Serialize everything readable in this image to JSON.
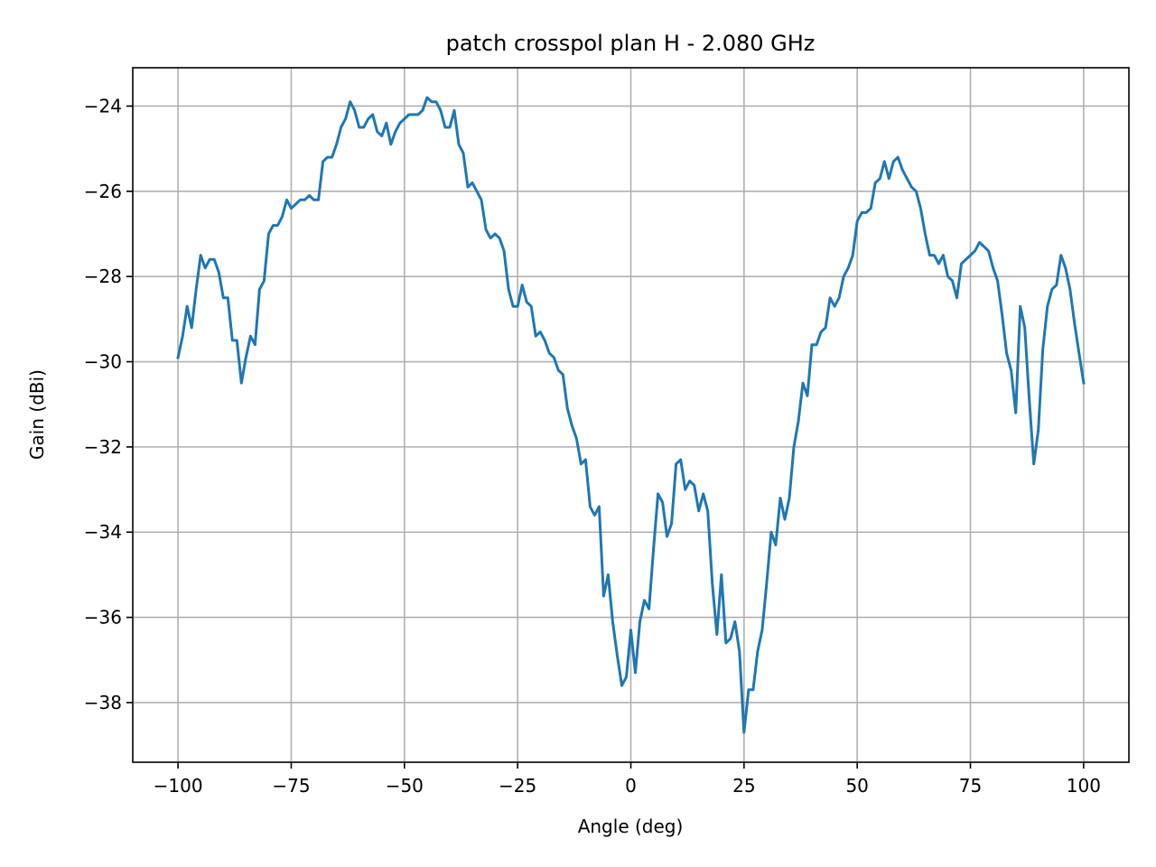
{
  "chart_data": {
    "type": "line",
    "title": "patch crosspol plan H - 2.080 GHz",
    "xlabel": "Angle (deg)",
    "ylabel": "Gain (dBi)",
    "xlim": [
      -110,
      110
    ],
    "ylim": [
      -39.4,
      -23.1
    ],
    "grid": true,
    "xticks": [
      -100,
      -75,
      -50,
      -25,
      0,
      25,
      50,
      75,
      100
    ],
    "xtick_labels": [
      "−100",
      "−75",
      "−50",
      "−25",
      "0",
      "25",
      "50",
      "75",
      "100"
    ],
    "yticks": [
      -38,
      -36,
      -34,
      -32,
      -30,
      -28,
      -26,
      -24
    ],
    "ytick_labels": [
      "−38",
      "−36",
      "−34",
      "−32",
      "−30",
      "−28",
      "−26",
      "−24"
    ],
    "series": [
      {
        "color": "#1f77b4",
        "x": [
          -100,
          -99,
          -98,
          -97,
          -96,
          -95,
          -94,
          -93,
          -92,
          -91,
          -90,
          -89,
          -88,
          -87,
          -86,
          -85,
          -84,
          -83,
          -82,
          -81,
          -80,
          -79,
          -78,
          -77,
          -76,
          -75,
          -74,
          -73,
          -72,
          -71,
          -70,
          -69,
          -68,
          -67,
          -66,
          -65,
          -64,
          -63,
          -62,
          -61,
          -60,
          -59,
          -58,
          -57,
          -56,
          -55,
          -54,
          -53,
          -52,
          -51,
          -50,
          -49,
          -48,
          -47,
          -46,
          -45,
          -44,
          -43,
          -42,
          -41,
          -40,
          -39,
          -38,
          -37,
          -36,
          -35,
          -34,
          -33,
          -32,
          -31,
          -30,
          -29,
          -28,
          -27,
          -26,
          -25,
          -24,
          -23,
          -22,
          -21,
          -20,
          -19,
          -18,
          -17,
          -16,
          -15,
          -14,
          -13,
          -12,
          -11,
          -10,
          -9,
          -8,
          -7,
          -6,
          -5,
          -4,
          -3,
          -2,
          -1,
          0,
          1,
          2,
          3,
          4,
          5,
          6,
          7,
          8,
          9,
          10,
          11,
          12,
          13,
          14,
          15,
          16,
          17,
          18,
          19,
          20,
          21,
          22,
          23,
          24,
          25,
          26,
          27,
          28,
          29,
          30,
          31,
          32,
          33,
          34,
          35,
          36,
          37,
          38,
          39,
          40,
          41,
          42,
          43,
          44,
          45,
          46,
          47,
          48,
          49,
          50,
          51,
          52,
          53,
          54,
          55,
          56,
          57,
          58,
          59,
          60,
          61,
          62,
          63,
          64,
          65,
          66,
          67,
          68,
          69,
          70,
          71,
          72,
          73,
          74,
          75,
          76,
          77,
          78,
          79,
          80,
          81,
          82,
          83,
          84,
          85,
          86,
          87,
          88,
          89,
          90,
          91,
          92,
          93,
          94,
          95,
          96,
          97,
          98,
          99,
          100
        ],
        "y": [
          -29.9,
          -29.4,
          -28.7,
          -29.2,
          -28.3,
          -27.5,
          -27.8,
          -27.6,
          -27.6,
          -27.9,
          -28.5,
          -28.5,
          -29.5,
          -29.5,
          -30.5,
          -29.9,
          -29.4,
          -29.6,
          -28.3,
          -28.1,
          -27.0,
          -26.8,
          -26.8,
          -26.6,
          -26.2,
          -26.4,
          -26.3,
          -26.2,
          -26.2,
          -26.1,
          -26.2,
          -26.2,
          -25.3,
          -25.2,
          -25.2,
          -24.9,
          -24.5,
          -24.3,
          -23.9,
          -24.1,
          -24.5,
          -24.5,
          -24.3,
          -24.2,
          -24.6,
          -24.7,
          -24.4,
          -24.9,
          -24.6,
          -24.4,
          -24.3,
          -24.2,
          -24.2,
          -24.2,
          -24.1,
          -23.8,
          -23.9,
          -23.9,
          -24.1,
          -24.5,
          -24.5,
          -24.1,
          -24.9,
          -25.1,
          -25.9,
          -25.8,
          -26.0,
          -26.2,
          -26.9,
          -27.1,
          -27.0,
          -27.1,
          -27.4,
          -28.3,
          -28.7,
          -28.7,
          -28.2,
          -28.6,
          -28.7,
          -29.4,
          -29.3,
          -29.5,
          -29.8,
          -29.9,
          -30.2,
          -30.3,
          -31.1,
          -31.5,
          -31.8,
          -32.4,
          -32.3,
          -33.4,
          -33.6,
          -33.4,
          -35.5,
          -35.0,
          -36.1,
          -36.9,
          -37.6,
          -37.4,
          -36.3,
          -37.3,
          -36.1,
          -35.6,
          -35.8,
          -34.4,
          -33.1,
          -33.3,
          -34.1,
          -33.8,
          -32.4,
          -32.3,
          -33.0,
          -32.8,
          -32.9,
          -33.5,
          -33.1,
          -33.5,
          -35.2,
          -36.4,
          -35.0,
          -36.6,
          -36.5,
          -36.1,
          -36.8,
          -38.7,
          -37.7,
          -37.7,
          -36.8,
          -36.3,
          -35.2,
          -34.0,
          -34.3,
          -33.2,
          -33.7,
          -33.2,
          -32.0,
          -31.4,
          -30.5,
          -30.8,
          -29.6,
          -29.6,
          -29.3,
          -29.2,
          -28.5,
          -28.7,
          -28.5,
          -28.0,
          -27.8,
          -27.5,
          -26.7,
          -26.5,
          -26.5,
          -26.4,
          -25.8,
          -25.7,
          -25.3,
          -25.7,
          -25.3,
          -25.2,
          -25.5,
          -25.7,
          -25.9,
          -26.0,
          -26.4,
          -27.0,
          -27.5,
          -27.5,
          -27.7,
          -27.5,
          -28.0,
          -28.1,
          -28.5,
          -27.7,
          -27.6,
          -27.5,
          -27.4,
          -27.2,
          -27.3,
          -27.4,
          -27.8,
          -28.1,
          -28.9,
          -29.8,
          -30.2,
          -31.2,
          -28.7,
          -29.2,
          -30.9,
          -32.4,
          -31.6,
          -29.7,
          -28.7,
          -28.3,
          -28.2,
          -27.5,
          -27.8,
          -28.3,
          -29.1,
          -29.8,
          -30.5
        ]
      }
    ]
  }
}
